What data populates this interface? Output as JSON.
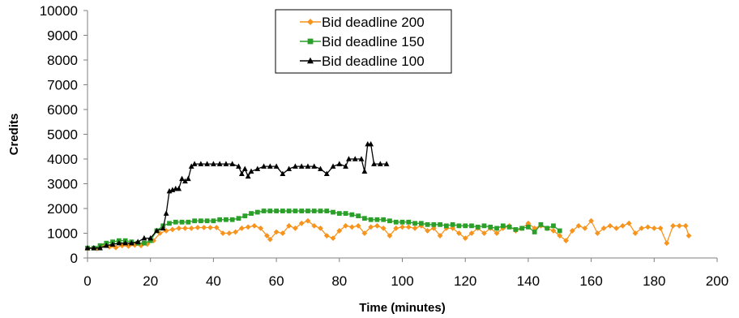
{
  "chart_data": {
    "type": "line",
    "title": "",
    "xlabel": "Time (minutes)",
    "ylabel": "Credits",
    "xlim": [
      0,
      200
    ],
    "ylim": [
      0,
      10000
    ],
    "x_ticks": [
      0,
      20,
      40,
      60,
      80,
      100,
      120,
      140,
      160,
      180,
      200
    ],
    "y_ticks": [
      0,
      1000,
      2000,
      3000,
      4000,
      5000,
      6000,
      7000,
      8000,
      9000,
      10000
    ],
    "grid": false,
    "legend_position": "top-center",
    "series": [
      {
        "name": "Bid deadline 200",
        "color": "#f7941d",
        "marker": "diamond",
        "points": [
          [
            0,
            380
          ],
          [
            3,
            380
          ],
          [
            5,
            500
          ],
          [
            7,
            450
          ],
          [
            9,
            420
          ],
          [
            11,
            500
          ],
          [
            13,
            480
          ],
          [
            15,
            520
          ],
          [
            17,
            500
          ],
          [
            19,
            560
          ],
          [
            21,
            700
          ],
          [
            23,
            1000
          ],
          [
            25,
            1100
          ],
          [
            27,
            1150
          ],
          [
            29,
            1200
          ],
          [
            31,
            1200
          ],
          [
            33,
            1200
          ],
          [
            35,
            1230
          ],
          [
            37,
            1230
          ],
          [
            39,
            1230
          ],
          [
            41,
            1230
          ],
          [
            43,
            1000
          ],
          [
            45,
            1000
          ],
          [
            47,
            1050
          ],
          [
            49,
            1200
          ],
          [
            51,
            1250
          ],
          [
            53,
            1300
          ],
          [
            55,
            1200
          ],
          [
            57,
            900
          ],
          [
            58,
            750
          ],
          [
            60,
            1050
          ],
          [
            62,
            1000
          ],
          [
            64,
            1300
          ],
          [
            66,
            1200
          ],
          [
            68,
            1400
          ],
          [
            70,
            1500
          ],
          [
            72,
            1300
          ],
          [
            74,
            1200
          ],
          [
            76,
            900
          ],
          [
            78,
            800
          ],
          [
            80,
            1100
          ],
          [
            82,
            1300
          ],
          [
            84,
            1250
          ],
          [
            86,
            1300
          ],
          [
            88,
            1000
          ],
          [
            90,
            1250
          ],
          [
            92,
            1300
          ],
          [
            94,
            1200
          ],
          [
            96,
            900
          ],
          [
            98,
            1200
          ],
          [
            100,
            1250
          ],
          [
            102,
            1250
          ],
          [
            104,
            1200
          ],
          [
            106,
            1300
          ],
          [
            108,
            1100
          ],
          [
            110,
            1200
          ],
          [
            112,
            900
          ],
          [
            114,
            1200
          ],
          [
            116,
            1200
          ],
          [
            118,
            1000
          ],
          [
            120,
            800
          ],
          [
            122,
            1000
          ],
          [
            124,
            1200
          ],
          [
            126,
            1000
          ],
          [
            128,
            1200
          ],
          [
            130,
            1000
          ],
          [
            132,
            1200
          ],
          [
            134,
            1300
          ],
          [
            136,
            1100
          ],
          [
            138,
            1200
          ],
          [
            140,
            1400
          ],
          [
            142,
            1200
          ],
          [
            144,
            1300
          ],
          [
            146,
            1200
          ],
          [
            148,
            1100
          ],
          [
            150,
            900
          ],
          [
            152,
            700
          ],
          [
            154,
            1100
          ],
          [
            156,
            1300
          ],
          [
            158,
            1200
          ],
          [
            160,
            1500
          ],
          [
            162,
            1000
          ],
          [
            164,
            1200
          ],
          [
            166,
            1300
          ],
          [
            168,
            1200
          ],
          [
            170,
            1300
          ],
          [
            172,
            1400
          ],
          [
            174,
            1000
          ],
          [
            176,
            1200
          ],
          [
            178,
            1250
          ],
          [
            180,
            1200
          ],
          [
            182,
            1200
          ],
          [
            184,
            600
          ],
          [
            186,
            1300
          ],
          [
            188,
            1300
          ],
          [
            190,
            1300
          ],
          [
            191,
            900
          ]
        ]
      },
      {
        "name": "Bid deadline 150",
        "color": "#2aa02a",
        "marker": "square",
        "points": [
          [
            0,
            400
          ],
          [
            2,
            400
          ],
          [
            4,
            500
          ],
          [
            6,
            600
          ],
          [
            8,
            650
          ],
          [
            10,
            700
          ],
          [
            12,
            700
          ],
          [
            14,
            650
          ],
          [
            16,
            600
          ],
          [
            18,
            600
          ],
          [
            20,
            700
          ],
          [
            22,
            1100
          ],
          [
            24,
            1300
          ],
          [
            26,
            1400
          ],
          [
            28,
            1450
          ],
          [
            30,
            1450
          ],
          [
            32,
            1450
          ],
          [
            34,
            1500
          ],
          [
            36,
            1500
          ],
          [
            38,
            1500
          ],
          [
            40,
            1500
          ],
          [
            42,
            1550
          ],
          [
            44,
            1550
          ],
          [
            46,
            1550
          ],
          [
            48,
            1600
          ],
          [
            50,
            1700
          ],
          [
            52,
            1800
          ],
          [
            54,
            1850
          ],
          [
            56,
            1900
          ],
          [
            58,
            1900
          ],
          [
            60,
            1900
          ],
          [
            62,
            1900
          ],
          [
            64,
            1900
          ],
          [
            66,
            1900
          ],
          [
            68,
            1900
          ],
          [
            70,
            1900
          ],
          [
            72,
            1900
          ],
          [
            74,
            1900
          ],
          [
            76,
            1900
          ],
          [
            78,
            1850
          ],
          [
            80,
            1800
          ],
          [
            82,
            1800
          ],
          [
            84,
            1750
          ],
          [
            86,
            1700
          ],
          [
            88,
            1600
          ],
          [
            90,
            1550
          ],
          [
            92,
            1550
          ],
          [
            94,
            1550
          ],
          [
            96,
            1500
          ],
          [
            98,
            1450
          ],
          [
            100,
            1450
          ],
          [
            102,
            1450
          ],
          [
            104,
            1400
          ],
          [
            106,
            1400
          ],
          [
            108,
            1350
          ],
          [
            110,
            1350
          ],
          [
            112,
            1350
          ],
          [
            114,
            1300
          ],
          [
            116,
            1350
          ],
          [
            118,
            1300
          ],
          [
            120,
            1300
          ],
          [
            122,
            1300
          ],
          [
            124,
            1250
          ],
          [
            126,
            1300
          ],
          [
            128,
            1250
          ],
          [
            130,
            1200
          ],
          [
            132,
            1300
          ],
          [
            134,
            1250
          ],
          [
            136,
            1150
          ],
          [
            138,
            1200
          ],
          [
            140,
            1250
          ],
          [
            142,
            1050
          ],
          [
            144,
            1350
          ],
          [
            146,
            1200
          ],
          [
            148,
            1300
          ],
          [
            150,
            1100
          ]
        ]
      },
      {
        "name": "Bid deadline 100",
        "color": "#000000",
        "marker": "triangle",
        "points": [
          [
            0,
            400
          ],
          [
            2,
            400
          ],
          [
            4,
            400
          ],
          [
            6,
            500
          ],
          [
            8,
            550
          ],
          [
            10,
            600
          ],
          [
            12,
            600
          ],
          [
            14,
            600
          ],
          [
            16,
            650
          ],
          [
            18,
            800
          ],
          [
            20,
            800
          ],
          [
            22,
            1100
          ],
          [
            24,
            1200
          ],
          [
            25,
            1800
          ],
          [
            26,
            2700
          ],
          [
            27,
            2750
          ],
          [
            28,
            2800
          ],
          [
            29,
            2800
          ],
          [
            30,
            3200
          ],
          [
            31,
            3100
          ],
          [
            32,
            3200
          ],
          [
            33,
            3700
          ],
          [
            34,
            3800
          ],
          [
            36,
            3800
          ],
          [
            38,
            3800
          ],
          [
            40,
            3800
          ],
          [
            42,
            3800
          ],
          [
            44,
            3800
          ],
          [
            46,
            3800
          ],
          [
            48,
            3700
          ],
          [
            49,
            3400
          ],
          [
            50,
            3600
          ],
          [
            51,
            3300
          ],
          [
            52,
            3500
          ],
          [
            54,
            3600
          ],
          [
            56,
            3700
          ],
          [
            58,
            3700
          ],
          [
            60,
            3700
          ],
          [
            62,
            3400
          ],
          [
            64,
            3600
          ],
          [
            66,
            3700
          ],
          [
            68,
            3700
          ],
          [
            70,
            3700
          ],
          [
            72,
            3700
          ],
          [
            74,
            3600
          ],
          [
            76,
            3400
          ],
          [
            78,
            3700
          ],
          [
            80,
            3800
          ],
          [
            82,
            3700
          ],
          [
            83,
            4000
          ],
          [
            85,
            4000
          ],
          [
            87,
            4000
          ],
          [
            88,
            3500
          ],
          [
            89,
            4600
          ],
          [
            90,
            4600
          ],
          [
            91,
            3800
          ],
          [
            93,
            3800
          ],
          [
            95,
            3800
          ]
        ]
      }
    ]
  }
}
